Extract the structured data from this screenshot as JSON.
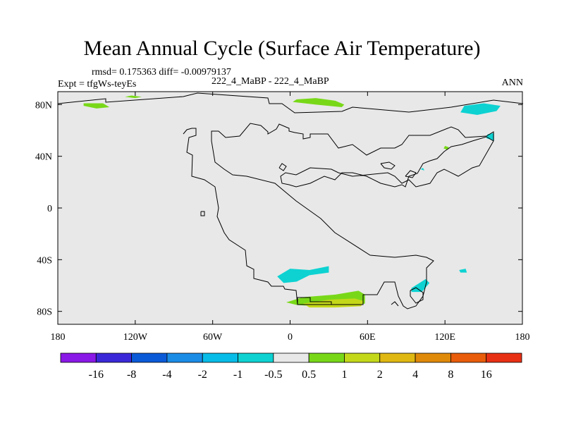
{
  "header": {
    "title": "Mean Annual Cycle (Surface Air Temperature)",
    "stats": "rmsd= 0.175363 diff= -0.00979137",
    "experiment": "Expt = tfgWs-teyEs",
    "case_label": "222_4_MaBP - 222_4_MaBP",
    "season": "ANN"
  },
  "chart_data": {
    "type": "heatmap",
    "title": "Mean Annual Cycle (Surface Air Temperature)",
    "xlabel": "",
    "ylabel": "",
    "xlim": [
      -180,
      180
    ],
    "ylim": [
      -90,
      90
    ],
    "x_ticks": [
      {
        "value": -180,
        "label": "180"
      },
      {
        "value": -120,
        "label": "120W"
      },
      {
        "value": -60,
        "label": "60W"
      },
      {
        "value": 0,
        "label": "0"
      },
      {
        "value": 60,
        "label": "60E"
      },
      {
        "value": 120,
        "label": "120E"
      },
      {
        "value": 180,
        "label": "180"
      }
    ],
    "y_ticks": [
      {
        "value": 80,
        "label": "80N"
      },
      {
        "value": 40,
        "label": "40N"
      },
      {
        "value": 0,
        "label": "0"
      },
      {
        "value": -40,
        "label": "40S"
      },
      {
        "value": -80,
        "label": "80S"
      }
    ],
    "background_fill": "#e8e8e8",
    "colorbar": {
      "colors": [
        "#8a18e6",
        "#3a28d8",
        "#0a5ad8",
        "#1a8ce6",
        "#08bce8",
        "#0ed2d2",
        "#e8e8e8",
        "#78d818",
        "#c4d81a",
        "#e0b812",
        "#e08a0a",
        "#e85c0a",
        "#e83014"
      ],
      "labels": [
        "-16",
        "-8",
        "-4",
        "-2",
        "-1",
        "-0.5",
        "0.5",
        "1",
        "2",
        "4",
        "8",
        "16"
      ]
    },
    "anomaly_regions": [
      {
        "name": "arctic-west",
        "color": "#78d818",
        "points": [
          [
            -160,
            79
          ],
          [
            -150,
            77
          ],
          [
            -140,
            78
          ],
          [
            -145,
            81
          ],
          [
            -160,
            81
          ]
        ]
      },
      {
        "name": "arctic-small",
        "color": "#78d818",
        "points": [
          [
            -128,
            86
          ],
          [
            -120,
            85
          ],
          [
            -115,
            86
          ],
          [
            -123,
            87
          ]
        ]
      },
      {
        "name": "arctic-central",
        "color": "#78d818",
        "points": [
          [
            2,
            82
          ],
          [
            20,
            80
          ],
          [
            40,
            78
          ],
          [
            42,
            80
          ],
          [
            35,
            83
          ],
          [
            20,
            85
          ],
          [
            5,
            84
          ]
        ]
      },
      {
        "name": "arctic-east",
        "color": "#0ed2d2",
        "points": [
          [
            132,
            74
          ],
          [
            145,
            72
          ],
          [
            160,
            75
          ],
          [
            163,
            79
          ],
          [
            150,
            81
          ],
          [
            135,
            79
          ]
        ]
      },
      {
        "name": "east-asia",
        "color": "#0ed2d2",
        "points": [
          [
            152,
            54
          ],
          [
            158,
            52
          ],
          [
            158,
            58
          ],
          [
            153,
            57
          ]
        ]
      },
      {
        "name": "siberia-dot",
        "color": "#78d818",
        "points": [
          [
            119,
            46
          ],
          [
            122,
            45
          ],
          [
            123,
            47
          ],
          [
            120,
            48
          ]
        ]
      },
      {
        "name": "india-dot",
        "color": "#0ed2d2",
        "points": [
          [
            101,
            30
          ],
          [
            104,
            29
          ],
          [
            103,
            31
          ]
        ]
      },
      {
        "name": "south-atlantic-teal",
        "color": "#0ed2d2",
        "points": [
          [
            -10,
            -53
          ],
          [
            0,
            -47
          ],
          [
            15,
            -48
          ],
          [
            30,
            -45
          ],
          [
            30,
            -50
          ],
          [
            15,
            -52
          ],
          [
            5,
            -57
          ],
          [
            -5,
            -58
          ]
        ]
      },
      {
        "name": "south-green",
        "color": "#78d818",
        "points": [
          [
            -3,
            -73
          ],
          [
            10,
            -69
          ],
          [
            35,
            -67
          ],
          [
            53,
            -64
          ],
          [
            58,
            -67
          ],
          [
            58,
            -74
          ],
          [
            40,
            -76
          ],
          [
            20,
            -76
          ],
          [
            5,
            -75
          ]
        ]
      },
      {
        "name": "south-yellow",
        "color": "#c4d81a",
        "points": [
          [
            10,
            -74
          ],
          [
            30,
            -71
          ],
          [
            50,
            -70
          ],
          [
            57,
            -72
          ],
          [
            55,
            -76
          ],
          [
            35,
            -77
          ],
          [
            15,
            -77
          ]
        ]
      },
      {
        "name": "south-east-teal",
        "color": "#0ed2d2",
        "points": [
          [
            94,
            -62
          ],
          [
            105,
            -55
          ],
          [
            108,
            -58
          ],
          [
            102,
            -65
          ],
          [
            94,
            -65
          ]
        ]
      },
      {
        "name": "south-east-dot",
        "color": "#0ed2d2",
        "points": [
          [
            131,
            -48
          ],
          [
            136,
            -47
          ],
          [
            137,
            -50
          ],
          [
            132,
            -50
          ]
        ]
      }
    ]
  }
}
